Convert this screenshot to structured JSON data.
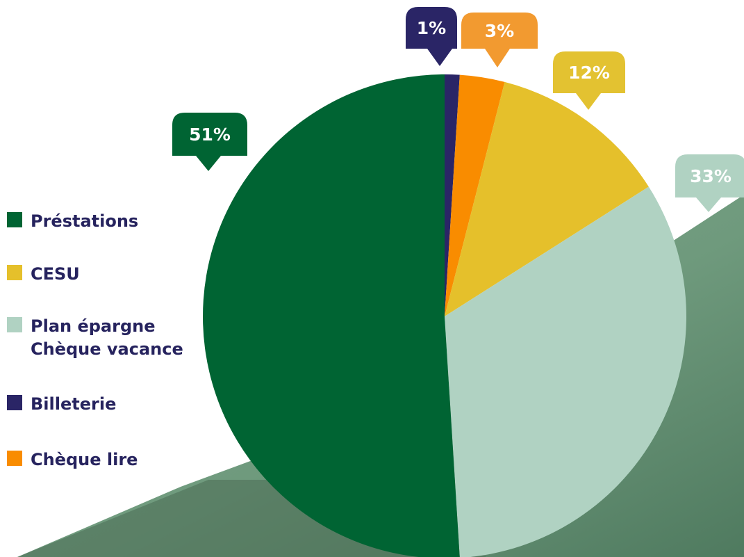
{
  "chart_data": {
    "type": "pie",
    "slices": [
      {
        "label": "Billeterie",
        "value": 1,
        "value_label": "1%",
        "color": "#2a2566"
      },
      {
        "label": "Chèque lire",
        "value": 3,
        "value_label": "3%",
        "color": "#f98c00"
      },
      {
        "label": "CESU",
        "value": 12,
        "value_label": "12%",
        "color": "#e5c02b"
      },
      {
        "label": "Plan épargne\nChèque vacance",
        "value": 33,
        "value_label": "33%",
        "color": "#b0d2c2"
      },
      {
        "label": "Préstations",
        "value": 51,
        "value_label": "51%",
        "color": "#006433"
      }
    ],
    "legend": [
      {
        "label": "Préstations",
        "color": "#006433"
      },
      {
        "label": "CESU",
        "color": "#e5c02b"
      },
      {
        "label": "Plan épargne\nChèque vacance",
        "color": "#b0d2c2"
      },
      {
        "label": "Billeterie",
        "color": "#2a2566"
      },
      {
        "label": "Chèque lire",
        "color": "#f98c00"
      }
    ],
    "legend_placement": "left",
    "title": ""
  },
  "colors": {
    "background": "#ffffff",
    "backdrop_green": "#74a184",
    "legend_text": "#26235e",
    "callout_3pct": "#f29a30",
    "callout_12pct": "#e3c231"
  }
}
